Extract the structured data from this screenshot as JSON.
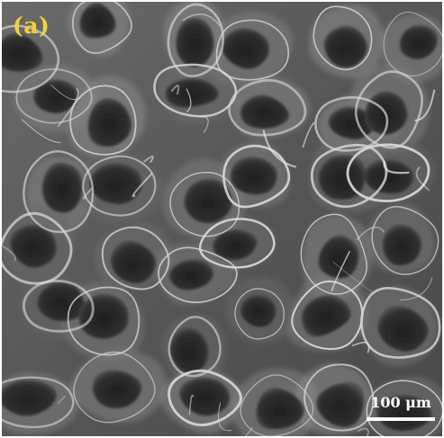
{
  "panel_label": "(a)",
  "scale_bar": {
    "label": "100 μm"
  },
  "colors": {
    "panel_label": "#f2d338",
    "scale_bar": "#ffffff",
    "pore_dark": "#2b2b2b",
    "wall_light": "#d9d9d9",
    "background_mid": "#5c5c5c"
  }
}
